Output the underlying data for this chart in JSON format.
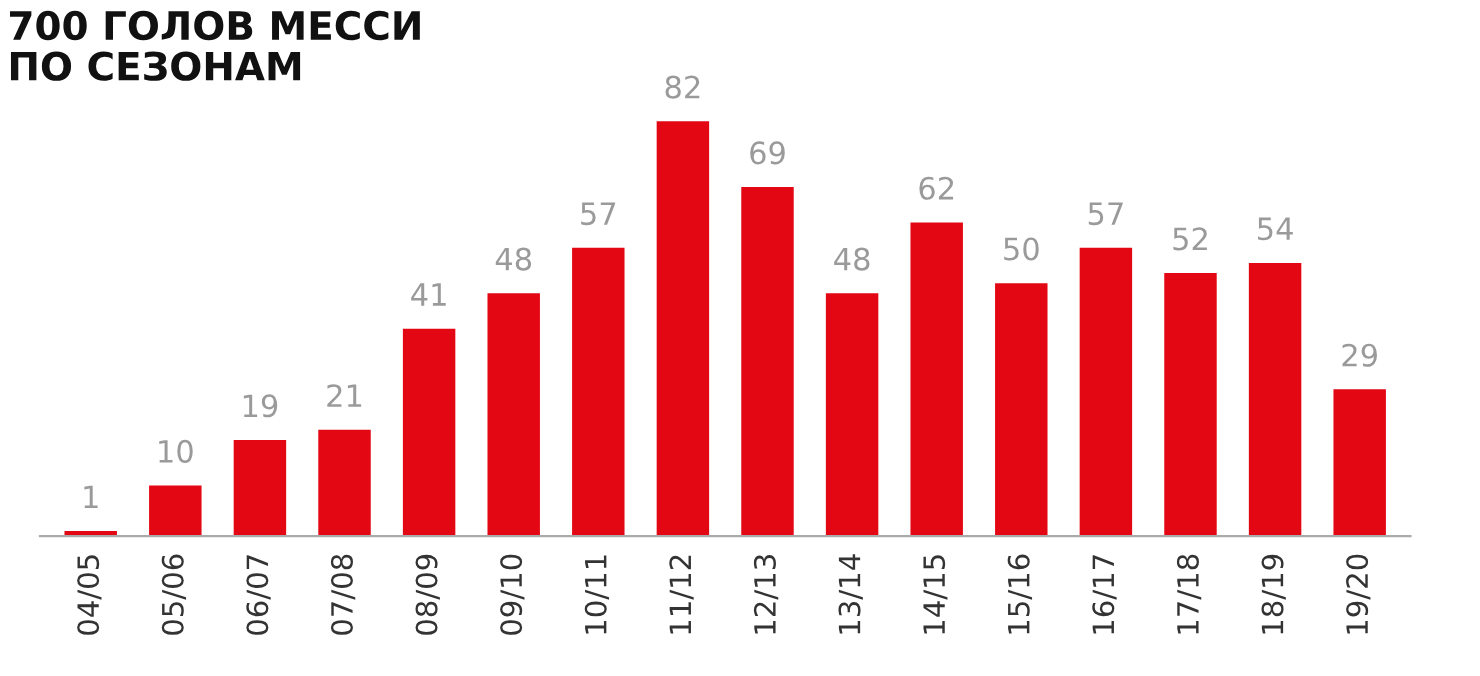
{
  "chart_data": {
    "type": "bar",
    "title": "700 ГОЛОВ МЕССИ\nПО СЕЗОНАМ",
    "categories": [
      "04/05",
      "05/06",
      "06/07",
      "07/08",
      "08/09",
      "09/10",
      "10/11",
      "11/12",
      "12/13",
      "13/14",
      "14/15",
      "15/16",
      "16/17",
      "17/18",
      "18/19",
      "19/20"
    ],
    "values": [
      1,
      10,
      19,
      21,
      41,
      48,
      57,
      82,
      69,
      48,
      62,
      50,
      57,
      52,
      54,
      29
    ],
    "color": "#e30613",
    "data_labels": true,
    "grid": false,
    "tick_labels": "x"
  }
}
